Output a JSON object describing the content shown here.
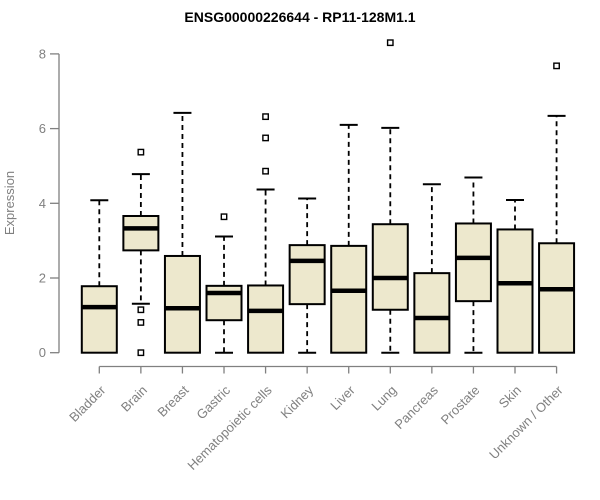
{
  "title": "ENSG00000226644 - RP11-128M1.1",
  "chart_data": {
    "type": "boxplot",
    "title": "ENSG00000226644 - RP11-128M1.1",
    "xlabel": "",
    "ylabel": "Expression",
    "ylim": [
      0,
      8.4
    ],
    "yticks": [
      0,
      2,
      4,
      6,
      8
    ],
    "grid": false,
    "legend": "none",
    "categories": [
      "Bladder",
      "Brain",
      "Breast",
      "Gastric",
      "Hematopoietic cells",
      "Kidney",
      "Liver",
      "Lung",
      "Pancreas",
      "Prostate",
      "Skin",
      "Unknown / Other"
    ],
    "boxes": [
      {
        "category": "Bladder",
        "low": 0,
        "q1": 0,
        "median": 1.22,
        "q3": 1.78,
        "high": 4.08,
        "outliers": []
      },
      {
        "category": "Brain",
        "low": 1.31,
        "q1": 2.74,
        "median": 3.33,
        "q3": 3.66,
        "high": 4.78,
        "outliers": [
          5.37,
          1.15,
          0.81,
          0
        ]
      },
      {
        "category": "Breast",
        "low": 0,
        "q1": 0,
        "median": 1.19,
        "q3": 2.59,
        "high": 6.42,
        "outliers": []
      },
      {
        "category": "Gastric",
        "low": 0,
        "q1": 0.87,
        "median": 1.6,
        "q3": 1.79,
        "high": 3.11,
        "outliers": [
          3.64
        ]
      },
      {
        "category": "Hematopoietic cells",
        "low": 0,
        "q1": 0,
        "median": 1.12,
        "q3": 1.8,
        "high": 4.37,
        "outliers": [
          4.86,
          5.75,
          6.32
        ]
      },
      {
        "category": "Kidney",
        "low": 0,
        "q1": 1.3,
        "median": 2.46,
        "q3": 2.88,
        "high": 4.13,
        "outliers": []
      },
      {
        "category": "Liver",
        "low": 0,
        "q1": 0,
        "median": 1.66,
        "q3": 2.86,
        "high": 6.1,
        "outliers": []
      },
      {
        "category": "Lung",
        "low": 0,
        "q1": 1.15,
        "median": 2.0,
        "q3": 3.44,
        "high": 6.02,
        "outliers": [
          8.3
        ]
      },
      {
        "category": "Pancreas",
        "low": 0,
        "q1": 0,
        "median": 0.93,
        "q3": 2.13,
        "high": 4.51,
        "outliers": []
      },
      {
        "category": "Prostate",
        "low": 0,
        "q1": 1.38,
        "median": 2.54,
        "q3": 3.46,
        "high": 4.69,
        "outliers": []
      },
      {
        "category": "Skin",
        "low": 0,
        "q1": 0,
        "median": 1.86,
        "q3": 3.3,
        "high": 4.09,
        "outliers": []
      },
      {
        "category": "Unknown / Other",
        "low": 0,
        "q1": 0,
        "median": 1.7,
        "q3": 2.93,
        "high": 6.34,
        "outliers": [
          7.68
        ]
      }
    ],
    "colors": {
      "box_fill": "#ede8cd",
      "box_stroke": "#000000",
      "median": "#000000",
      "axis": "#808080",
      "title": "#000000",
      "background": "#ffffff"
    }
  }
}
